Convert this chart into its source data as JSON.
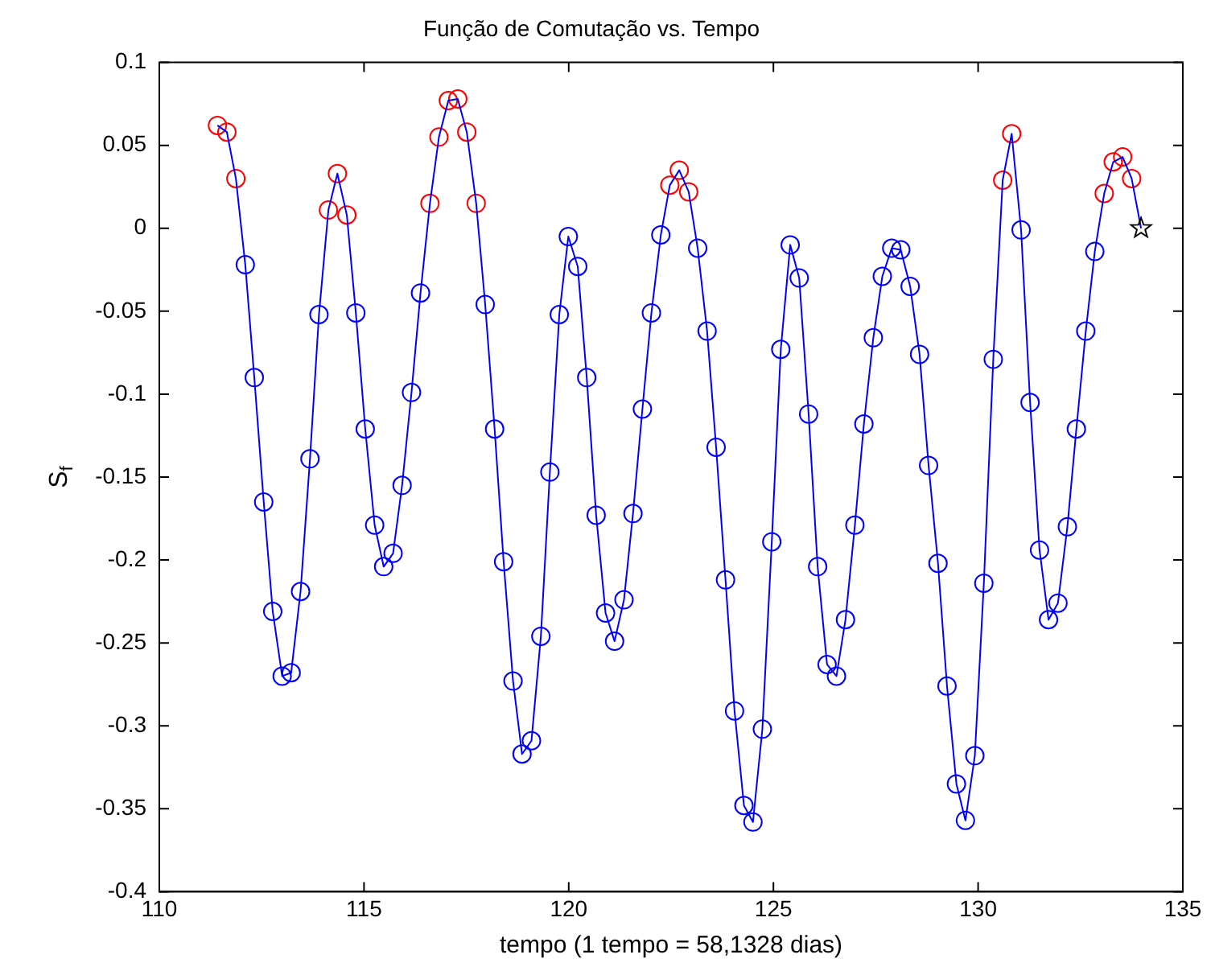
{
  "chart_data": {
    "type": "line",
    "title": "Função de Comutação vs. Tempo",
    "xlabel": "tempo (1 tempo = 58,1328 dias)",
    "ylabel": "S$_{f}$",
    "x": [
      111.42,
      111.65,
      111.87,
      112.1,
      112.32,
      112.55,
      112.77,
      113.0,
      113.22,
      113.45,
      113.68,
      113.9,
      114.13,
      114.35,
      114.58,
      114.8,
      115.03,
      115.26,
      115.48,
      115.71,
      115.93,
      116.16,
      116.38,
      116.61,
      116.83,
      117.06,
      117.29,
      117.51,
      117.74,
      117.96,
      118.19,
      118.41,
      118.64,
      118.86,
      119.09,
      119.32,
      119.54,
      119.77,
      119.99,
      120.22,
      120.44,
      120.67,
      120.9,
      121.12,
      121.35,
      121.57,
      121.8,
      122.02,
      122.25,
      122.47,
      122.7,
      122.93,
      123.15,
      123.38,
      123.6,
      123.83,
      124.05,
      124.28,
      124.5,
      124.73,
      124.96,
      125.18,
      125.41,
      125.63,
      125.86,
      126.08,
      126.31,
      126.54,
      126.76,
      126.99,
      127.21,
      127.44,
      127.66,
      127.89,
      128.11,
      128.34,
      128.57,
      128.79,
      129.02,
      129.24,
      129.47,
      129.69,
      129.92,
      130.14,
      130.37,
      130.6,
      130.82,
      131.05,
      131.27,
      131.5,
      131.72,
      131.95,
      132.18,
      132.4,
      132.63,
      132.85,
      133.08,
      133.3,
      133.53,
      133.75,
      133.98
    ],
    "series": [
      {
        "type": "line",
        "color": "#0000ff",
        "marker": "none",
        "values": [
          0.062,
          0.058,
          0.03,
          -0.022,
          -0.09,
          -0.165,
          -0.231,
          -0.27,
          -0.268,
          -0.219,
          -0.139,
          -0.052,
          0.011,
          0.033,
          0.008,
          -0.051,
          -0.121,
          -0.179,
          -0.204,
          -0.196,
          -0.155,
          -0.099,
          -0.039,
          0.015,
          0.055,
          0.077,
          0.078,
          0.058,
          0.015,
          -0.046,
          -0.121,
          -0.201,
          -0.273,
          -0.317,
          -0.309,
          -0.246,
          -0.147,
          -0.052,
          -0.005,
          -0.023,
          -0.09,
          -0.173,
          -0.232,
          -0.249,
          -0.224,
          -0.172,
          -0.109,
          -0.051,
          -0.004,
          0.026,
          0.035,
          0.022,
          -0.012,
          -0.062,
          -0.132,
          -0.212,
          -0.291,
          -0.348,
          -0.358,
          -0.302,
          -0.189,
          -0.073,
          -0.01,
          -0.03,
          -0.112,
          -0.204,
          -0.263,
          -0.27,
          -0.236,
          -0.179,
          -0.118,
          -0.066,
          -0.029,
          -0.012,
          -0.013,
          -0.035,
          -0.076,
          -0.143,
          -0.202,
          -0.276,
          -0.335,
          -0.357,
          -0.318,
          -0.214,
          -0.079,
          0.029,
          0.057,
          -0.001,
          -0.105,
          -0.194,
          -0.236,
          -0.226,
          -0.18,
          -0.121,
          -0.062,
          -0.014,
          0.021,
          0.04,
          0.043,
          0.03,
          0
        ]
      },
      {
        "type": "scatter",
        "color": "#0000ff",
        "marker": "circle",
        "values": [
          null,
          null,
          null,
          -0.022,
          -0.09,
          -0.165,
          -0.231,
          -0.27,
          -0.268,
          -0.219,
          -0.139,
          -0.052,
          null,
          null,
          null,
          -0.051,
          -0.121,
          -0.179,
          -0.204,
          -0.196,
          -0.155,
          -0.099,
          -0.039,
          null,
          null,
          null,
          null,
          null,
          null,
          -0.046,
          -0.121,
          -0.201,
          -0.273,
          -0.317,
          -0.309,
          -0.246,
          -0.147,
          -0.052,
          -0.005,
          -0.023,
          -0.09,
          -0.173,
          -0.232,
          -0.249,
          -0.224,
          -0.172,
          -0.109,
          -0.051,
          -0.004,
          null,
          null,
          null,
          -0.012,
          -0.062,
          -0.132,
          -0.212,
          -0.291,
          -0.348,
          -0.358,
          -0.302,
          -0.189,
          -0.073,
          -0.01,
          -0.03,
          -0.112,
          -0.204,
          -0.263,
          -0.27,
          -0.236,
          -0.179,
          -0.118,
          -0.066,
          -0.029,
          -0.012,
          -0.013,
          -0.035,
          -0.076,
          -0.143,
          -0.202,
          -0.276,
          -0.335,
          -0.357,
          -0.318,
          -0.214,
          -0.079,
          null,
          null,
          -0.001,
          -0.105,
          -0.194,
          -0.236,
          -0.226,
          -0.18,
          -0.121,
          -0.062,
          -0.014,
          null,
          null,
          null,
          null,
          null
        ]
      },
      {
        "type": "scatter",
        "color": "#ff0000",
        "marker": "circle",
        "values": [
          0.062,
          0.058,
          0.03,
          null,
          null,
          null,
          null,
          null,
          null,
          null,
          null,
          null,
          0.011,
          0.033,
          0.008,
          null,
          null,
          null,
          null,
          null,
          null,
          null,
          null,
          0.015,
          0.055,
          0.077,
          0.078,
          0.058,
          0.015,
          null,
          null,
          null,
          null,
          null,
          null,
          null,
          null,
          null,
          null,
          null,
          null,
          null,
          null,
          null,
          null,
          null,
          null,
          null,
          null,
          0.026,
          0.035,
          0.022,
          null,
          null,
          null,
          null,
          null,
          null,
          null,
          null,
          null,
          null,
          null,
          null,
          null,
          null,
          null,
          null,
          null,
          null,
          null,
          null,
          null,
          null,
          null,
          null,
          null,
          null,
          null,
          null,
          null,
          null,
          null,
          null,
          null,
          0.029,
          0.057,
          null,
          null,
          null,
          null,
          null,
          null,
          null,
          null,
          null,
          0.021,
          0.04,
          0.043,
          0.03,
          null
        ]
      },
      {
        "type": "scatter",
        "color": "#000000",
        "marker": "star",
        "values": [
          null,
          null,
          null,
          null,
          null,
          null,
          null,
          null,
          null,
          null,
          null,
          null,
          null,
          null,
          null,
          null,
          null,
          null,
          null,
          null,
          null,
          null,
          null,
          null,
          null,
          null,
          null,
          null,
          null,
          null,
          null,
          null,
          null,
          null,
          null,
          null,
          null,
          null,
          null,
          null,
          null,
          null,
          null,
          null,
          null,
          null,
          null,
          null,
          null,
          null,
          null,
          null,
          null,
          null,
          null,
          null,
          null,
          null,
          null,
          null,
          null,
          null,
          null,
          null,
          null,
          null,
          null,
          null,
          null,
          null,
          null,
          null,
          null,
          null,
          null,
          null,
          null,
          null,
          null,
          null,
          null,
          null,
          null,
          null,
          null,
          null,
          null,
          null,
          null,
          null,
          null,
          null,
          null,
          null,
          null,
          null,
          null,
          null,
          null,
          null,
          0
        ]
      }
    ],
    "xlim": [
      110,
      135
    ],
    "xticks": [
      110,
      115,
      120,
      125,
      130,
      135
    ],
    "ylim": [
      -0.4,
      0.1
    ],
    "yticks": [
      -0.4,
      -0.35,
      -0.3,
      -0.25,
      -0.2,
      -0.15,
      -0.1,
      -0.05,
      0,
      0.05,
      0.1
    ],
    "grid": false,
    "legend": false
  }
}
